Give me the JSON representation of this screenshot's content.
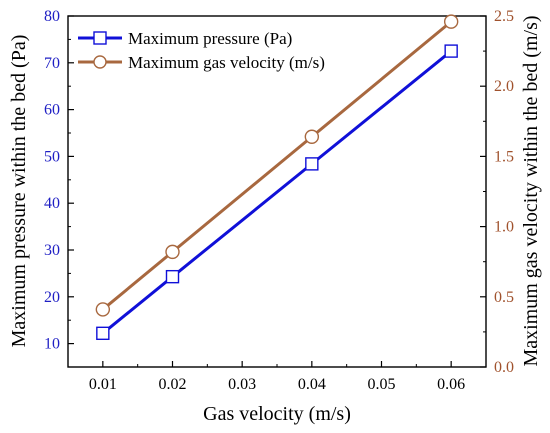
{
  "chart_data": {
    "type": "line",
    "x": [
      0.01,
      0.02,
      0.04,
      0.06
    ],
    "xlabel": "Gas velocity (m/s)",
    "x_ticks": [
      "0.01",
      "0.02",
      "0.03",
      "0.04",
      "0.05",
      "0.06"
    ],
    "y_left": {
      "label": "Maximum pressure within the bed (Pa)",
      "ylim": [
        5,
        80
      ],
      "ticks": [
        "10",
        "20",
        "30",
        "40",
        "50",
        "60",
        "70",
        "80"
      ],
      "color": "#1f1fc4"
    },
    "y_right": {
      "label": "Maximum gas velocity within the bed (m/s)",
      "ylim": [
        0,
        2.5
      ],
      "ticks": [
        "0.0",
        "0.5",
        "1.0",
        "1.5",
        "2.0",
        "2.5"
      ],
      "color": "#a0522d"
    },
    "series": [
      {
        "name": "Maximum pressure (Pa)",
        "axis": "left",
        "marker": "square",
        "color": "#1010d8",
        "values": [
          12.2,
          24.3,
          48.4,
          72.5
        ]
      },
      {
        "name": "Maximum gas velocity (m/s)",
        "axis": "right",
        "marker": "circle",
        "color": "#a8683f",
        "values": [
          0.41,
          0.82,
          1.64,
          2.46
        ]
      }
    ],
    "legend_position": "top-left",
    "grid": false
  }
}
